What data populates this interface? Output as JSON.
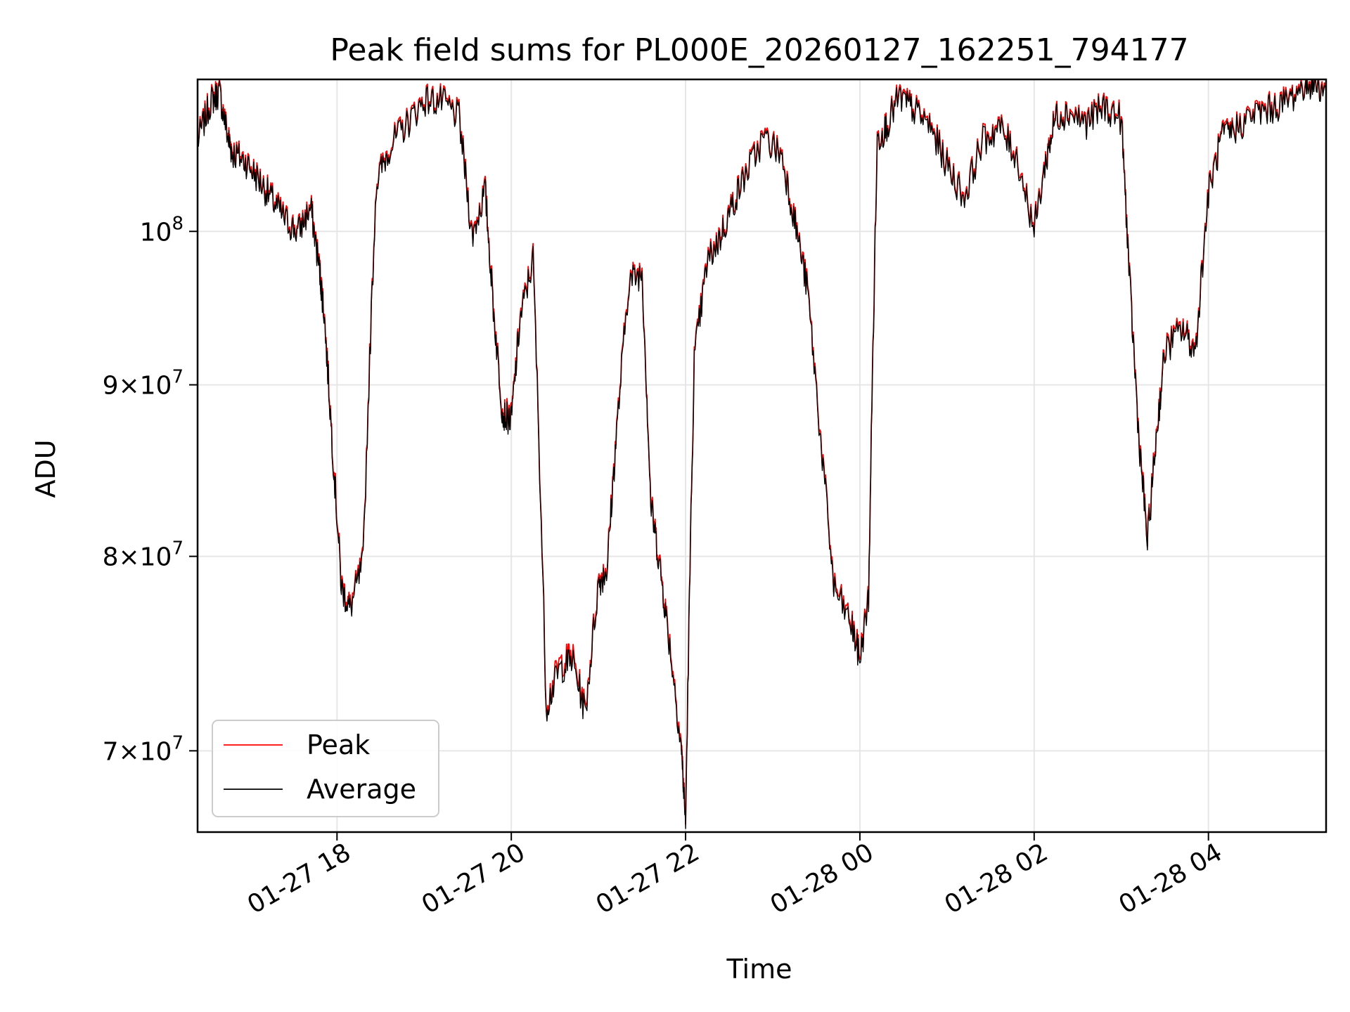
{
  "chart_data": {
    "type": "line",
    "title": "Peak field sums for PL000E_20260127_162251_794177",
    "xlabel": "Time",
    "ylabel": "ADU",
    "yscale": "log",
    "ylim": [
      66200000,
      111000000
    ],
    "x_unit": "hours since 2026-01-27 00:00",
    "xlim": [
      16.4,
      29.35
    ],
    "grid": true,
    "legend_position": "lower-left",
    "x_ticks": [
      {
        "value": 18,
        "label": "01-27 18"
      },
      {
        "value": 20,
        "label": "01-27 20"
      },
      {
        "value": 22,
        "label": "01-27 22"
      },
      {
        "value": 24,
        "label": "01-28 00"
      },
      {
        "value": 26,
        "label": "01-28 02"
      },
      {
        "value": 28,
        "label": "01-28 04"
      }
    ],
    "y_ticks": [
      {
        "value": 70000000,
        "base": "7",
        "exp": "7"
      },
      {
        "value": 80000000,
        "base": "8",
        "exp": "7"
      },
      {
        "value": 90000000,
        "base": "9",
        "exp": "7"
      },
      {
        "value": 100000000,
        "base": "",
        "exp": "8"
      }
    ],
    "series": [
      {
        "name": "Peak",
        "color": "#ff0000",
        "x": [
          16.4,
          16.55,
          16.65,
          16.75,
          16.8,
          16.95,
          17.1,
          17.25,
          17.4,
          17.55,
          17.7,
          17.8,
          17.85,
          17.95,
          18.05,
          18.15,
          18.3,
          18.45,
          18.6,
          18.8,
          19.0,
          19.2,
          19.4,
          19.55,
          19.7,
          19.8,
          19.9,
          20.0,
          20.1,
          20.25,
          20.4,
          20.55,
          20.7,
          20.85,
          21.0,
          21.1,
          21.2,
          21.35,
          21.5,
          21.6,
          21.7,
          21.8,
          21.95,
          22.0,
          22.1,
          22.25,
          22.4,
          22.55,
          22.7,
          22.9,
          23.1,
          23.25,
          23.4,
          23.55,
          23.7,
          23.9,
          24.0,
          24.1,
          24.2,
          24.3,
          24.45,
          24.6,
          24.8,
          25.0,
          25.2,
          25.4,
          25.6,
          25.8,
          26.0,
          26.15,
          26.25,
          26.4,
          26.6,
          26.8,
          27.0,
          27.1,
          27.2,
          27.3,
          27.4,
          27.5,
          27.7,
          27.85,
          28.0,
          28.15,
          28.3,
          28.5,
          28.7,
          28.9,
          29.1,
          29.2,
          29.35
        ],
        "values": [
          106500000,
          109500000,
          110200000,
          106800000,
          105700000,
          105100000,
          103800000,
          102400000,
          101000000,
          100100000,
          101800000,
          97500000,
          94800000,
          86200000,
          78500000,
          77300000,
          79800000,
          103500000,
          106100000,
          107800000,
          109600000,
          109500000,
          108300000,
          99800000,
          103000000,
          94600000,
          88400000,
          88000000,
          94200000,
          98300000,
          72300000,
          74300000,
          74800000,
          72000000,
          78700000,
          79500000,
          86700000,
          96800000,
          97400000,
          83100000,
          79800000,
          76100000,
          70400000,
          66700000,
          91700000,
          98100000,
          99800000,
          102200000,
          104300000,
          106800000,
          105600000,
          101000000,
          96200000,
          86800000,
          78500000,
          76500000,
          74700000,
          77900000,
          106600000,
          107600000,
          109800000,
          109000000,
          107700000,
          104800000,
          102500000,
          106500000,
          107600000,
          105400000,
          100300000,
          105600000,
          108400000,
          108700000,
          107900000,
          109100000,
          108200000,
          96300000,
          87000000,
          80900000,
          86900000,
          92300000,
          93700000,
          92200000,
          102800000,
          106800000,
          107400000,
          108500000,
          108900000,
          109500000,
          110700000,
          111000000,
          110200000
        ]
      },
      {
        "name": "Average",
        "color": "#000000",
        "x": [
          16.4,
          16.55,
          16.65,
          16.75,
          16.8,
          16.95,
          17.1,
          17.25,
          17.4,
          17.55,
          17.7,
          17.8,
          17.85,
          17.95,
          18.05,
          18.15,
          18.3,
          18.45,
          18.6,
          18.8,
          19.0,
          19.2,
          19.4,
          19.55,
          19.7,
          19.8,
          19.9,
          20.0,
          20.1,
          20.25,
          20.4,
          20.55,
          20.7,
          20.85,
          21.0,
          21.1,
          21.2,
          21.35,
          21.5,
          21.6,
          21.7,
          21.8,
          21.95,
          22.0,
          22.1,
          22.25,
          22.4,
          22.55,
          22.7,
          22.9,
          23.1,
          23.25,
          23.4,
          23.55,
          23.7,
          23.9,
          24.0,
          24.1,
          24.2,
          24.3,
          24.45,
          24.6,
          24.8,
          25.0,
          25.2,
          25.4,
          25.6,
          25.8,
          26.0,
          26.15,
          26.25,
          26.4,
          26.6,
          26.8,
          27.0,
          27.1,
          27.2,
          27.3,
          27.4,
          27.5,
          27.7,
          27.85,
          28.0,
          28.15,
          28.3,
          28.5,
          28.7,
          28.9,
          29.1,
          29.2,
          29.35
        ],
        "values": [
          106300000,
          109300000,
          110000000,
          106600000,
          105500000,
          104900000,
          103600000,
          102200000,
          100800000,
          99900000,
          101600000,
          97300000,
          94600000,
          86000000,
          78300000,
          77100000,
          79600000,
          103300000,
          105900000,
          107600000,
          109400000,
          109300000,
          108100000,
          99600000,
          102800000,
          94400000,
          88200000,
          87800000,
          94000000,
          98100000,
          72100000,
          74000000,
          74500000,
          71800000,
          78500000,
          79300000,
          86500000,
          96600000,
          97200000,
          82900000,
          79600000,
          75900000,
          70200000,
          66500000,
          91500000,
          97900000,
          99600000,
          102000000,
          104100000,
          106600000,
          105400000,
          100800000,
          96000000,
          86600000,
          78300000,
          76300000,
          74500000,
          77700000,
          106400000,
          107400000,
          109600000,
          108800000,
          107500000,
          104600000,
          102300000,
          106300000,
          107400000,
          105200000,
          100100000,
          105400000,
          108200000,
          108500000,
          107700000,
          108900000,
          108000000,
          96100000,
          86800000,
          80700000,
          86700000,
          92100000,
          93500000,
          92000000,
          102600000,
          106600000,
          107200000,
          108300000,
          108700000,
          109300000,
          110500000,
          110800000,
          110000000
        ]
      }
    ]
  }
}
